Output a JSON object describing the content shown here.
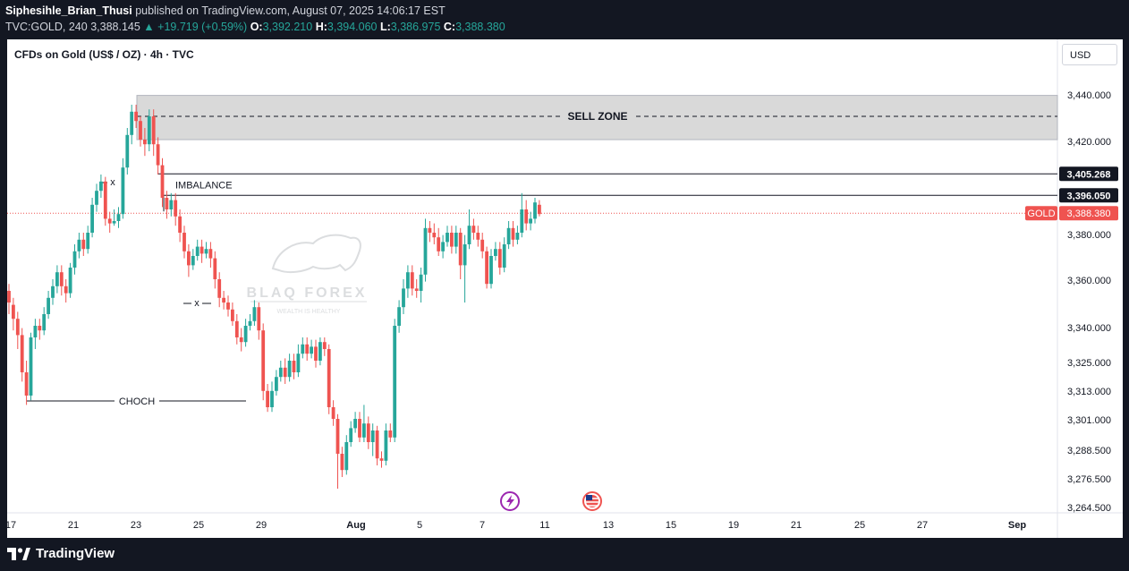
{
  "header": {
    "author": "Siphesihle_Brian_Thusi",
    "published_text": "published on TradingView.com, August 07, 2025 14:06:17 EST",
    "symbol": "TVC:GOLD, 240",
    "last": "3,388.145",
    "change": "+19.719 (+0.59%)",
    "o_label": "O:",
    "o": "3,392.210",
    "h_label": "H:",
    "h": "3,394.060",
    "l_label": "L:",
    "l": "3,386.975",
    "c_label": "C:",
    "c": "3,388.380"
  },
  "chart_title": "CFDs on Gold (US$ / OZ) · 4h · TVC",
  "currency": "USD",
  "footer_brand": "TradingView",
  "colors": {
    "up": "#26a69a",
    "down": "#ef5350",
    "zone": "#d9d9d9",
    "price_line": "#ef5350"
  },
  "chart_data": {
    "type": "candlestick",
    "y_ticks": [
      "3,440.000",
      "3,420.000",
      "3,380.000",
      "3,360.000",
      "3,340.000",
      "3,325.000",
      "3,313.000",
      "3,301.000",
      "3,288.500",
      "3,276.500",
      "3,264.500"
    ],
    "x_ticks": [
      "17",
      "21",
      "23",
      "25",
      "29",
      "Aug",
      "5",
      "7",
      "11",
      "13",
      "15",
      "19",
      "21",
      "25",
      "27",
      "Sep"
    ],
    "price_labels": [
      {
        "text": "3,405.268",
        "style": "dark"
      },
      {
        "text": "3,396.050",
        "style": "dark"
      },
      {
        "symbol": "GOLD",
        "text": "3,388.380",
        "style": "red"
      }
    ],
    "annotations": {
      "sell_zone": "SELL ZONE",
      "imbalance": "IMBALANCE",
      "choch": "CHOCH",
      "x1": "x",
      "x2": "x"
    },
    "levels": {
      "sell_zone_top": 3439,
      "sell_zone_bottom": 3420,
      "sell_zone_mid": 3430,
      "line_1": 3405.268,
      "line_2": 3396.05,
      "current": 3388.38
    },
    "watermark": {
      "brand": "BLAQ FOREX",
      "tagline": "WEALTH IS HEALTHY"
    },
    "candles": [
      [
        3355,
        3350,
        3358,
        3345
      ],
      [
        3349,
        3343,
        3352,
        3338
      ],
      [
        3343,
        3336,
        3346,
        3330
      ],
      [
        3336,
        3320,
        3339,
        3316
      ],
      [
        3320,
        3310,
        3325,
        3306
      ],
      [
        3310,
        3335,
        3337,
        3308
      ],
      [
        3335,
        3340,
        3343,
        3330
      ],
      [
        3340,
        3338,
        3343,
        3334
      ],
      [
        3338,
        3345,
        3348,
        3336
      ],
      [
        3345,
        3352,
        3355,
        3343
      ],
      [
        3352,
        3357,
        3360,
        3349
      ],
      [
        3357,
        3363,
        3366,
        3354
      ],
      [
        3363,
        3357,
        3366,
        3353
      ],
      [
        3357,
        3354,
        3360,
        3350
      ],
      [
        3354,
        3365,
        3367,
        3352
      ],
      [
        3365,
        3372,
        3375,
        3362
      ],
      [
        3372,
        3377,
        3380,
        3369
      ],
      [
        3377,
        3373,
        3380,
        3370
      ],
      [
        3373,
        3380,
        3383,
        3371
      ],
      [
        3380,
        3392,
        3395,
        3378
      ],
      [
        3392,
        3398,
        3401,
        3389
      ],
      [
        3398,
        3402,
        3405,
        3395
      ],
      [
        3402,
        3386,
        3404,
        3383
      ],
      [
        3386,
        3384,
        3389,
        3380
      ],
      [
        3384,
        3385,
        3390,
        3383
      ],
      [
        3385,
        3388,
        3391,
        3382
      ],
      [
        3388,
        3408,
        3412,
        3386
      ],
      [
        3408,
        3422,
        3425,
        3405
      ],
      [
        3422,
        3432,
        3435,
        3418
      ],
      [
        3432,
        3428,
        3435,
        3425
      ],
      [
        3428,
        3420,
        3430,
        3417
      ],
      [
        3420,
        3418,
        3425,
        3413
      ],
      [
        3418,
        3430,
        3433,
        3415
      ],
      [
        3430,
        3418,
        3433,
        3413
      ],
      [
        3418,
        3409,
        3421,
        3405
      ],
      [
        3409,
        3395,
        3412,
        3391
      ],
      [
        3395,
        3390,
        3398,
        3386
      ],
      [
        3390,
        3394,
        3397,
        3387
      ],
      [
        3394,
        3387,
        3397,
        3383
      ],
      [
        3387,
        3380,
        3390,
        3376
      ],
      [
        3380,
        3372,
        3383,
        3369
      ],
      [
        3372,
        3366,
        3375,
        3361
      ],
      [
        3366,
        3370,
        3373,
        3364
      ],
      [
        3370,
        3374,
        3377,
        3368
      ],
      [
        3374,
        3371,
        3377,
        3367
      ],
      [
        3371,
        3373,
        3376,
        3369
      ],
      [
        3373,
        3369,
        3376,
        3365
      ],
      [
        3369,
        3360,
        3372,
        3356
      ],
      [
        3360,
        3352,
        3363,
        3348
      ],
      [
        3352,
        3350,
        3355,
        3347
      ],
      [
        3350,
        3347,
        3353,
        3344
      ],
      [
        3347,
        3342,
        3350,
        3340
      ],
      [
        3342,
        3335,
        3345,
        3332
      ],
      [
        3335,
        3333,
        3339,
        3329
      ],
      [
        3333,
        3340,
        3343,
        3331
      ],
      [
        3340,
        3342,
        3345,
        3338
      ],
      [
        3342,
        3348,
        3351,
        3340
      ],
      [
        3348,
        3338,
        3350,
        3334
      ],
      [
        3338,
        3312,
        3341,
        3308
      ],
      [
        3312,
        3305,
        3315,
        3303
      ],
      [
        3305,
        3312,
        3316,
        3303
      ],
      [
        3312,
        3318,
        3321,
        3310
      ],
      [
        3318,
        3322,
        3325,
        3316
      ],
      [
        3322,
        3318,
        3326,
        3315
      ],
      [
        3318,
        3325,
        3328,
        3316
      ],
      [
        3325,
        3320,
        3328,
        3317
      ],
      [
        3320,
        3328,
        3332,
        3318
      ],
      [
        3328,
        3332,
        3335,
        3326
      ],
      [
        3332,
        3328,
        3335,
        3325
      ],
      [
        3328,
        3331,
        3334,
        3326
      ],
      [
        3331,
        3325,
        3334,
        3322
      ],
      [
        3325,
        3333,
        3335,
        3323
      ],
      [
        3333,
        3330,
        3335,
        3327
      ],
      [
        3330,
        3305,
        3332,
        3302
      ],
      [
        3305,
        3300,
        3308,
        3297
      ],
      [
        3300,
        3285,
        3302,
        3270
      ],
      [
        3285,
        3278,
        3288,
        3275
      ],
      [
        3278,
        3290,
        3293,
        3276
      ],
      [
        3290,
        3296,
        3299,
        3288
      ],
      [
        3296,
        3300,
        3303,
        3294
      ],
      [
        3300,
        3292,
        3303,
        3290
      ],
      [
        3292,
        3298,
        3306,
        3290
      ],
      [
        3298,
        3290,
        3301,
        3287
      ],
      [
        3290,
        3295,
        3298,
        3284
      ],
      [
        3295,
        3283,
        3297,
        3280
      ],
      [
        3283,
        3282,
        3286,
        3279
      ],
      [
        3282,
        3295,
        3298,
        3280
      ],
      [
        3295,
        3292,
        3298,
        3290
      ],
      [
        3292,
        3340,
        3343,
        3290
      ],
      [
        3340,
        3348,
        3351,
        3337
      ],
      [
        3348,
        3356,
        3360,
        3345
      ],
      [
        3356,
        3363,
        3366,
        3352
      ],
      [
        3363,
        3356,
        3366,
        3353
      ],
      [
        3356,
        3355,
        3360,
        3352
      ],
      [
        3355,
        3362,
        3365,
        3350
      ],
      [
        3362,
        3382,
        3386,
        3359
      ],
      [
        3382,
        3380,
        3385,
        3376
      ],
      [
        3380,
        3378,
        3384,
        3375
      ],
      [
        3378,
        3372,
        3382,
        3370
      ],
      [
        3372,
        3376,
        3379,
        3369
      ],
      [
        3376,
        3380,
        3383,
        3374
      ],
      [
        3380,
        3374,
        3383,
        3371
      ],
      [
        3374,
        3380,
        3383,
        3371
      ],
      [
        3380,
        3366,
        3382,
        3360
      ],
      [
        3366,
        3375,
        3379,
        3350
      ],
      [
        3375,
        3383,
        3390,
        3373
      ],
      [
        3383,
        3380,
        3386,
        3377
      ],
      [
        3380,
        3377,
        3383,
        3374
      ],
      [
        3377,
        3372,
        3380,
        3369
      ],
      [
        3372,
        3358,
        3374,
        3356
      ],
      [
        3358,
        3370,
        3373,
        3356
      ],
      [
        3370,
        3373,
        3376,
        3368
      ],
      [
        3373,
        3365,
        3376,
        3362
      ],
      [
        3365,
        3375,
        3378,
        3363
      ],
      [
        3375,
        3382,
        3385,
        3373
      ],
      [
        3382,
        3377,
        3385,
        3374
      ],
      [
        3377,
        3380,
        3383,
        3375
      ],
      [
        3380,
        3390,
        3397,
        3378
      ],
      [
        3390,
        3384,
        3394,
        3381
      ],
      [
        3384,
        3386,
        3389,
        3381
      ],
      [
        3386,
        3393,
        3395,
        3384
      ],
      [
        3392,
        3388,
        3394,
        3387
      ]
    ]
  }
}
